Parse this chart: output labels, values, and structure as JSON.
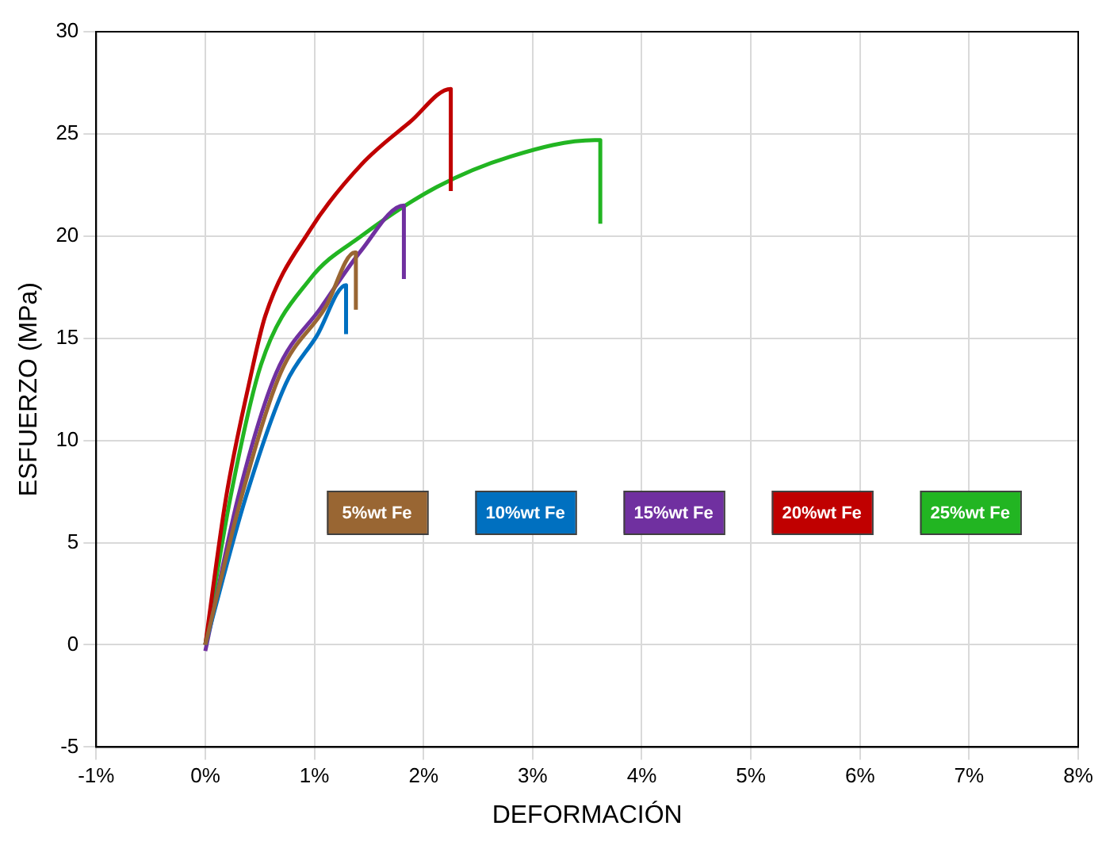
{
  "chart_data": {
    "type": "line",
    "xlabel": "DEFORMACIÓN",
    "ylabel": "ESFUERZO (MPa)",
    "xlim": [
      -1,
      8
    ],
    "xticks": [
      {
        "value": -1,
        "label": "-1%"
      },
      {
        "value": 0,
        "label": "0%"
      },
      {
        "value": 1,
        "label": "1%"
      },
      {
        "value": 2,
        "label": "2%"
      },
      {
        "value": 3,
        "label": "3%"
      },
      {
        "value": 4,
        "label": "4%"
      },
      {
        "value": 5,
        "label": "5%"
      },
      {
        "value": 6,
        "label": "6%"
      },
      {
        "value": 7,
        "label": "7%"
      },
      {
        "value": 8,
        "label": "8%"
      }
    ],
    "ylim": [
      -5,
      30
    ],
    "yticks": [
      -5,
      0,
      5,
      10,
      15,
      20,
      25,
      30
    ],
    "grid": true,
    "legend": "center",
    "marker": "none",
    "line_style": "solid",
    "series": [
      {
        "name": "5%wt Fe",
        "color": "#996633",
        "x": [
          0,
          0.33,
          0.69,
          1.1,
          1.37,
          1.38,
          1.38
        ],
        "values": [
          0,
          7.2,
          13.3,
          16.5,
          19.2,
          19.2,
          16.4
        ]
      },
      {
        "name": "10%wt Fe",
        "color": "#0070c0",
        "x": [
          0,
          0.37,
          0.74,
          1.02,
          1.29,
          1.29
        ],
        "values": [
          0,
          7.2,
          12.8,
          15.1,
          17.6,
          15.2
        ]
      },
      {
        "name": "15%wt Fe",
        "color": "#7030a0",
        "x": [
          0,
          0.3,
          0.65,
          1.06,
          1.43,
          1.82,
          1.82
        ],
        "values": [
          -0.3,
          7.2,
          13.3,
          16.5,
          19.3,
          21.5,
          17.9
        ]
      },
      {
        "name": "20%wt Fe",
        "color": "#c00000",
        "x": [
          0,
          0.19,
          0.41,
          0.55,
          0.96,
          1.43,
          1.88,
          2.25,
          2.25
        ],
        "values": [
          0,
          7.2,
          13,
          16.1,
          20.3,
          23.5,
          25.6,
          27.2,
          22.2
        ]
      },
      {
        "name": "25%wt Fe",
        "color": "#22b522",
        "x": [
          0,
          0.23,
          0.51,
          0.96,
          1.43,
          2.12,
          2.8,
          3.57,
          3.62,
          3.62
        ],
        "values": [
          0,
          7.2,
          13.7,
          17.9,
          20,
          22.4,
          23.9,
          24.7,
          24.7,
          20.6
        ]
      }
    ]
  }
}
